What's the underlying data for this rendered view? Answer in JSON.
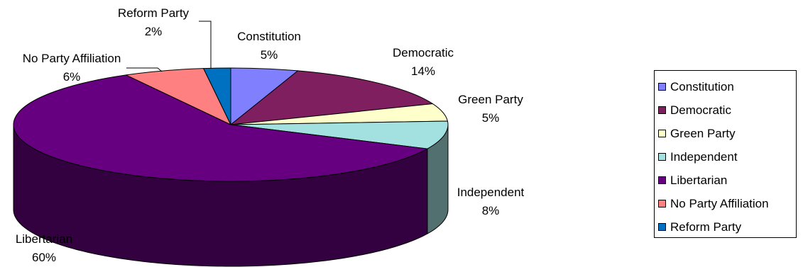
{
  "chart_data": {
    "type": "pie",
    "title": "",
    "style": "3d",
    "legend_position": "right",
    "categories": [
      "Constitution",
      "Democratic",
      "Green Party",
      "Independent",
      "Libertarian",
      "No Party Affiliation",
      "Reform Party"
    ],
    "values": [
      5,
      14,
      5,
      8,
      60,
      6,
      2
    ],
    "labels": [
      "5%",
      "14%",
      "5%",
      "8%",
      "60%",
      "6%",
      "2%"
    ],
    "colors": [
      "#8080ff",
      "#7f1f5f",
      "#ffffcc",
      "#a3e0e0",
      "#660080",
      "#ff8080",
      "#0070c0"
    ]
  }
}
